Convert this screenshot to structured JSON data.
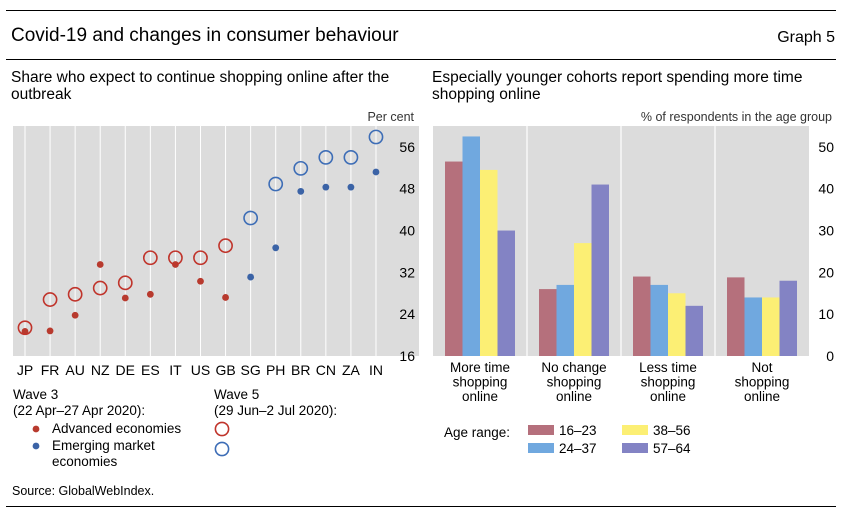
{
  "header": {
    "title": "Covid-19 and changes in consumer behaviour",
    "graph_label": "Graph 5"
  },
  "source": "Source: GlobalWebIndex.",
  "colors": {
    "wave3": "#b83a2e",
    "wave5": "#c0342b",
    "emerging": "#3b63a6",
    "emerging_ring": "#3d6db6",
    "panel_bg": "#dcdcdc",
    "age_16_23": "#b5707c",
    "age_24_37": "#70a8df",
    "age_38_56": "#fcef74",
    "age_57_64": "#8383c4"
  },
  "chart_data": [
    {
      "type": "scatter",
      "title": "Share who expect to continue shopping online after the outbreak",
      "unit": "Per cent",
      "categories": [
        "JP",
        "FR",
        "AU",
        "NZ",
        "DE",
        "ES",
        "IT",
        "US",
        "GB",
        "SG",
        "PH",
        "BR",
        "CN",
        "ZA",
        "IN"
      ],
      "ylim": [
        16,
        60
      ],
      "yticks": [
        16,
        24,
        32,
        40,
        48,
        56
      ],
      "grid": true,
      "series": [
        {
          "name": "Advanced economies",
          "wave": "Wave 3",
          "marker": "dot",
          "group": "advanced",
          "values": [
            20.7,
            20.8,
            23.8,
            33.5,
            27.1,
            27.8,
            33.5,
            30.3,
            27.2,
            null,
            null,
            null,
            null,
            null,
            null
          ]
        },
        {
          "name": "Emerging market economies",
          "wave": "Wave 3",
          "marker": "dot",
          "group": "emerging",
          "values": [
            null,
            null,
            null,
            null,
            null,
            null,
            null,
            null,
            null,
            31.1,
            36.7,
            47.5,
            48.3,
            48.3,
            51.2
          ]
        },
        {
          "name": "Advanced economies",
          "wave": "Wave 5",
          "marker": "ring",
          "group": "advanced",
          "values": [
            21.4,
            26.8,
            27.8,
            29.0,
            30.0,
            34.8,
            34.8,
            34.8,
            37.1,
            null,
            null,
            null,
            null,
            null,
            null
          ]
        },
        {
          "name": "Emerging market economies",
          "wave": "Wave 5",
          "marker": "ring",
          "group": "emerging",
          "values": [
            null,
            null,
            null,
            null,
            null,
            null,
            null,
            null,
            null,
            42.4,
            48.9,
            51.9,
            54.0,
            54.0,
            57.9
          ]
        }
      ],
      "legend": {
        "wave3_title": "Wave 3",
        "wave3_dates": "(22 Apr–27 Apr 2020):",
        "wave5_title": "Wave 5",
        "wave5_dates": "(29 Jun–2 Jul 2020):",
        "advanced_label": "Advanced economies",
        "emerging_label": "Emerging market economies"
      }
    },
    {
      "type": "bar",
      "title": "Especially younger cohorts report spending more time shopping online",
      "unit": "% of respondents in the age group",
      "categories": [
        "More time shopping online",
        "No change shopping online",
        "Less time shopping online",
        "Not shopping online"
      ],
      "category_lines": [
        [
          "More time",
          "shopping",
          "online"
        ],
        [
          "No change",
          "shopping",
          "online"
        ],
        [
          "Less time",
          "shopping",
          "online"
        ],
        [
          "Not",
          "shopping",
          "online"
        ]
      ],
      "ylim": [
        0,
        55
      ],
      "yticks": [
        0,
        10,
        20,
        30,
        40,
        50
      ],
      "grid": true,
      "legend_title": "Age range:",
      "series": [
        {
          "name": "16–23",
          "values": [
            46.5,
            16.0,
            19.0,
            18.8
          ]
        },
        {
          "name": "24–37",
          "values": [
            52.5,
            17.0,
            17.0,
            14.0
          ]
        },
        {
          "name": "38–56",
          "values": [
            44.5,
            27.0,
            15.0,
            14.0
          ]
        },
        {
          "name": "57–64",
          "values": [
            30.0,
            41.0,
            12.0,
            18.0
          ]
        }
      ]
    }
  ]
}
